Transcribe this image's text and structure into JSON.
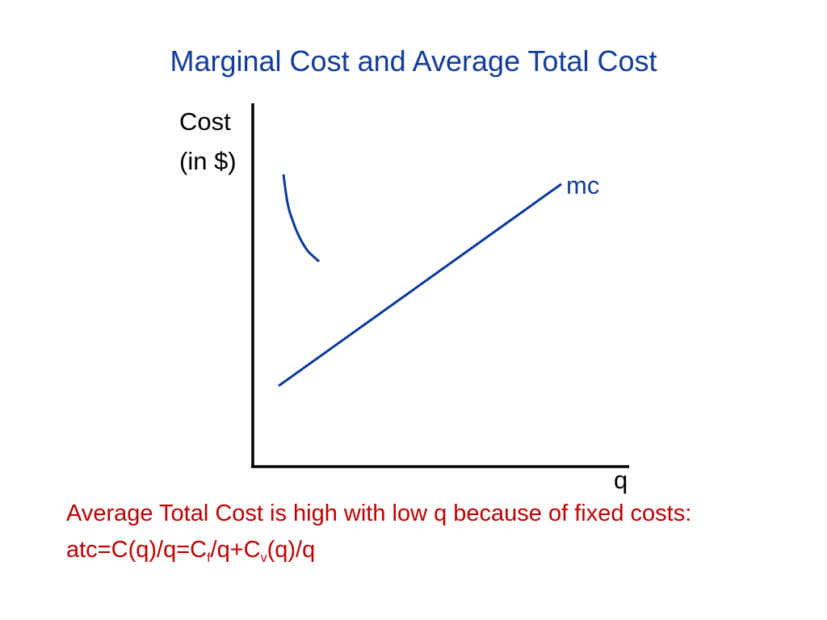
{
  "title": "Marginal Cost and Average Total Cost",
  "y_axis_label": [
    "Cost",
    "(in $)"
  ],
  "x_axis_label": "q",
  "curve_label": "mc",
  "note": {
    "line1": "Average Total Cost is high with low q because of fixed costs:",
    "formula": [
      "atc=C(q)/q=C",
      "f",
      "/q+C",
      "v",
      "(q)/q"
    ]
  }
}
